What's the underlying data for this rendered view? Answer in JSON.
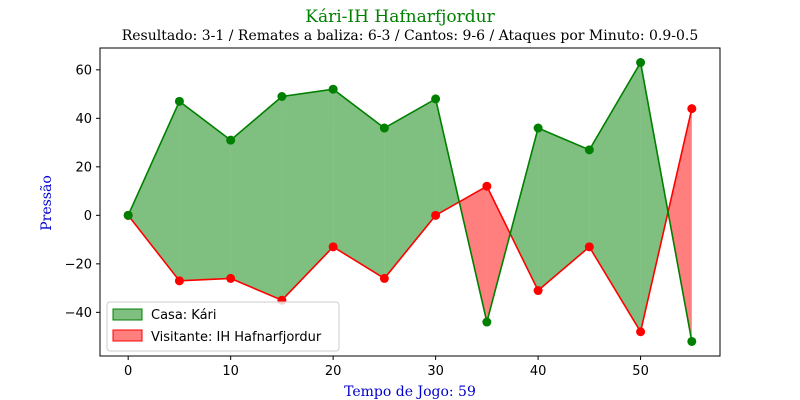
{
  "chart_data": {
    "type": "area",
    "title": "Kári-IH Hafnarfjordur",
    "subtitle": "Resultado: 3-1 / Remates a baliza: 6-3 / Cantos: 9-6 / Ataques por Minuto: 0.9-0.5",
    "xlabel": "Tempo de Jogo: 59",
    "ylabel": "Pressão",
    "xlim": [
      -2.75,
      57.75
    ],
    "ylim": [
      -58,
      69
    ],
    "x_ticks": [
      0,
      10,
      20,
      30,
      40,
      50
    ],
    "y_ticks": [
      -40,
      -20,
      0,
      20,
      40,
      60
    ],
    "x": [
      0,
      5,
      10,
      15,
      20,
      25,
      30,
      35,
      40,
      45,
      50,
      55
    ],
    "series": [
      {
        "name": "Casa: Kári",
        "values": [
          0,
          47,
          31,
          49,
          52,
          36,
          48,
          -44,
          36,
          27,
          63,
          -52
        ]
      },
      {
        "name": "Visitante: IH Hafnarfjordur",
        "values": [
          0,
          -27,
          -26,
          -35,
          -13,
          -26,
          0,
          12,
          -31,
          -13,
          -48,
          44
        ]
      }
    ],
    "legend_position": "lower-left",
    "grid": false,
    "colors": {
      "title": "#008000",
      "axis_label": "#0000cc",
      "home_line": "#008000",
      "home_fill": "#008000",
      "away_line": "#ff0000",
      "away_fill": "#ff0000"
    }
  }
}
